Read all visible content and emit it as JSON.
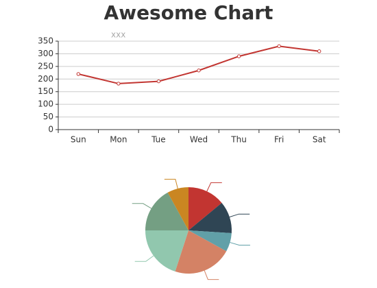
{
  "chart_data": [
    {
      "type": "line",
      "title": "Awesome Chart",
      "subtitle": "xxx",
      "categories": [
        "Sun",
        "Mon",
        "Tue",
        "Wed",
        "Thu",
        "Fri",
        "Sat"
      ],
      "series": [
        {
          "color": "#c23531",
          "values": [
            220,
            182,
            191,
            234,
            290,
            330,
            310
          ]
        }
      ],
      "ylim": [
        0,
        350
      ],
      "yticks": [
        0,
        50,
        100,
        150,
        200,
        250,
        300,
        350
      ],
      "grid": true
    },
    {
      "type": "pie",
      "values": [
        14,
        12,
        7,
        22,
        20,
        17,
        8
      ],
      "colors": [
        "#c23531",
        "#2f4554",
        "#61a0a8",
        "#d48265",
        "#91c7ae",
        "#749f83",
        "#ca8622"
      ]
    }
  ]
}
